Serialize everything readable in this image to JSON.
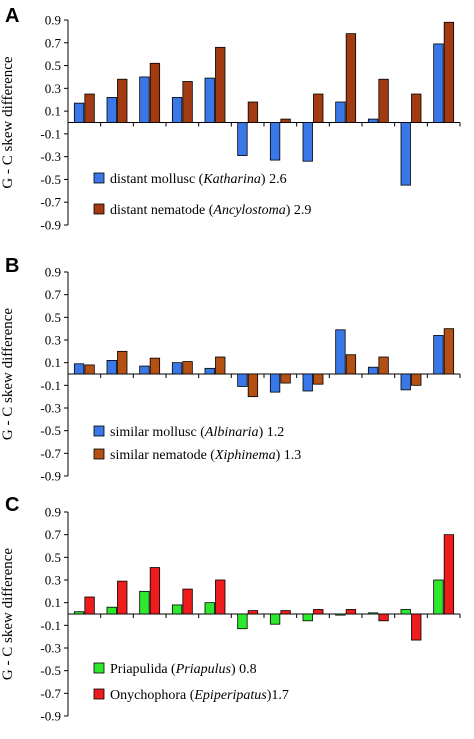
{
  "chart_data": [
    {
      "type": "bar",
      "panel_label": "A",
      "ylabel": "G - C skew difference",
      "ylim": [
        -0.9,
        0.9
      ],
      "yticks": [
        "0.9",
        "0.7",
        "0.5",
        "0.3",
        "0.1",
        "-0.1",
        "-0.3",
        "-0.5",
        "-0.7",
        "-0.9"
      ],
      "tick_values": [
        0.9,
        0.7,
        0.5,
        0.3,
        0.1,
        -0.1,
        -0.3,
        -0.5,
        -0.7,
        -0.9
      ],
      "categories_count": 12,
      "legend": "bottom-left",
      "series": [
        {
          "name": "distant mollusc",
          "name_italic": "Katharina",
          "value_label": "2.6",
          "color": "#3a78e8",
          "values": [
            0.17,
            0.22,
            0.4,
            0.22,
            0.39,
            -0.29,
            -0.33,
            -0.34,
            0.18,
            0.03,
            -0.55,
            0.69
          ]
        },
        {
          "name": "distant nematode",
          "name_italic": "Ancylostoma",
          "value_label": "2.9",
          "color": "#a33b12",
          "values": [
            0.25,
            0.38,
            0.52,
            0.36,
            0.66,
            0.18,
            0.03,
            0.25,
            0.78,
            0.38,
            0.25,
            0.88
          ]
        }
      ]
    },
    {
      "type": "bar",
      "panel_label": "B",
      "ylabel": "G - C skew difference",
      "ylim": [
        -0.9,
        0.9
      ],
      "yticks": [
        "0.9",
        "0.7",
        "0.5",
        "0.3",
        "0.1",
        "-0.1",
        "-0.3",
        "-0.5",
        "-0.7",
        "-0.9"
      ],
      "tick_values": [
        0.9,
        0.7,
        0.5,
        0.3,
        0.1,
        -0.1,
        -0.3,
        -0.5,
        -0.7,
        -0.9
      ],
      "categories_count": 12,
      "legend": "bottom-left",
      "series": [
        {
          "name": "similar mollusc",
          "name_italic": "Albinaria",
          "value_label": "1.2",
          "color": "#3a78e8",
          "values": [
            0.09,
            0.12,
            0.07,
            0.1,
            0.05,
            -0.11,
            -0.16,
            -0.15,
            0.39,
            0.06,
            -0.14,
            0.34
          ]
        },
        {
          "name": "similar nematode",
          "name_italic": "Xiphinema",
          "value_label": "1.3",
          "color": "#b45014",
          "values": [
            0.08,
            0.2,
            0.14,
            0.11,
            0.15,
            -0.2,
            -0.08,
            -0.09,
            0.17,
            0.15,
            -0.1,
            0.4
          ]
        }
      ]
    },
    {
      "type": "bar",
      "panel_label": "C",
      "ylabel": "G - C skew difference",
      "ylim": [
        -0.9,
        0.9
      ],
      "yticks": [
        "0.9",
        "0.7",
        "0.5",
        "0.3",
        "0.1",
        "-0.1",
        "-0.3",
        "-0.5",
        "-0.7",
        "-0.9"
      ],
      "tick_values": [
        0.9,
        0.7,
        0.5,
        0.3,
        0.1,
        -0.1,
        -0.3,
        -0.5,
        -0.7,
        -0.9
      ],
      "categories_count": 12,
      "legend": "bottom-left",
      "series": [
        {
          "name": "Priapulida",
          "name_italic": "Priapulus",
          "value_label": "0.8",
          "color": "#2ee82e",
          "values": [
            0.02,
            0.06,
            0.2,
            0.08,
            0.1,
            -0.13,
            -0.09,
            -0.06,
            -0.01,
            0.01,
            0.04,
            0.3
          ]
        },
        {
          "name": "Onychophora",
          "name_italic": "Epiperipatus",
          "value_label": "1.7",
          "color": "#ee1c1c",
          "values": [
            0.15,
            0.29,
            0.41,
            0.22,
            0.3,
            0.03,
            0.03,
            0.04,
            0.04,
            -0.06,
            -0.23,
            0.7
          ]
        }
      ]
    }
  ]
}
